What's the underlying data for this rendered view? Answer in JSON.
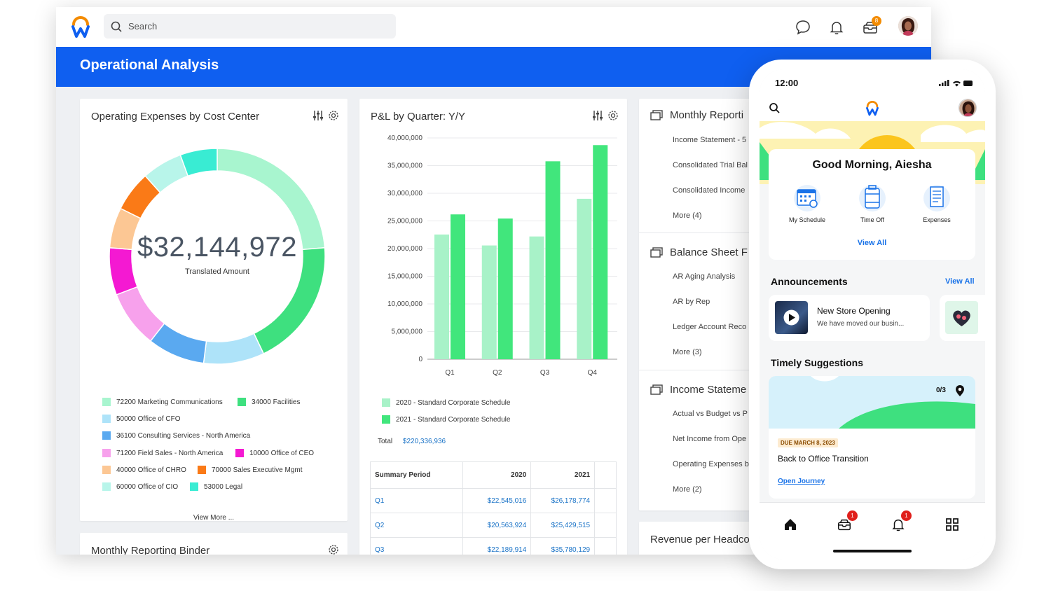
{
  "app": {
    "search_placeholder": "Search",
    "inbox_badge": "8",
    "page_title": "Operational Analysis",
    "brand_blue": "#0f5ff0"
  },
  "op_expenses": {
    "title": "Operating Expenses by Cost Center",
    "amount": "$32,144,972",
    "amount_label": "Translated Amount",
    "view_more": "View More ...",
    "legend": [
      {
        "label": "72200 Marketing Communications",
        "color": "#a8f5cf"
      },
      {
        "label": "34000 Facilities",
        "color": "#3ee07f"
      },
      {
        "label": "50000 Office of CFO",
        "color": "#aee3f9"
      },
      {
        "label": "36100 Consulting Services - North America",
        "color": "#5aa9f0"
      },
      {
        "label": "71200 Field Sales - North America",
        "color": "#f7a1ec"
      },
      {
        "label": "10000 Office of CEO",
        "color": "#f419d2"
      },
      {
        "label": "40000 Office of CHRO",
        "color": "#fcc794"
      },
      {
        "label": "70000 Sales Executive Mgmt",
        "color": "#fa7a17"
      },
      {
        "label": "60000 Office of CIO",
        "color": "#b8f5ea"
      },
      {
        "label": "53000 Legal",
        "color": "#39ecd3"
      }
    ]
  },
  "chart_data": {
    "type": "donut",
    "title": "Operating Expenses by Cost Center",
    "total": "$32,144,972",
    "slices": [
      {
        "label": "72200 Marketing Communications",
        "value": 23.5
      },
      {
        "label": "34000 Facilities",
        "value": 19.0
      },
      {
        "label": "50000 Office of CFO",
        "value": 9.0
      },
      {
        "label": "36100 Consulting Services - North America",
        "value": 8.5
      },
      {
        "label": "71200 Field Sales - North America",
        "value": 8.5
      },
      {
        "label": "10000 Office of CEO",
        "value": 7.0
      },
      {
        "label": "40000 Office of CHRO",
        "value": 6.0
      },
      {
        "label": "70000 Sales Executive Mgmt",
        "value": 6.0
      },
      {
        "label": "60000 Office of CIO",
        "value": 6.0
      },
      {
        "label": "53000 Legal",
        "value": 5.5
      }
    ],
    "colors": [
      "#a8f5cf",
      "#3ee07f",
      "#aee3f9",
      "#5aa9f0",
      "#f7a1ec",
      "#f419d2",
      "#fcc794",
      "#fa7a17",
      "#b8f5ea",
      "#39ecd3"
    ]
  },
  "pl": {
    "title": "P&L by Quarter: Y/Y",
    "y_ticks": [
      "40,000,000",
      "35,000,000",
      "30,000,000",
      "25,000,000",
      "20,000,000",
      "15,000,000",
      "10,000,000",
      "5,000,000",
      "0"
    ],
    "ylim": [
      0,
      40000000
    ],
    "categories": [
      "Q1",
      "Q2",
      "Q3",
      "Q4"
    ],
    "series": [
      {
        "name": "2020 - Standard Corporate Schedule",
        "color": "#a8f2c8",
        "values": [
          22545016,
          20563924,
          22189914,
          29000000
        ]
      },
      {
        "name": "2021 - Standard Corporate Schedule",
        "color": "#41e67c",
        "values": [
          26178774,
          25429515,
          35780129,
          38700000
        ]
      }
    ],
    "total_label": "Total",
    "total_value": "$220,336,936",
    "table": {
      "headers": [
        "Summary Period",
        "2020",
        "2021"
      ],
      "rows": [
        [
          "Q1",
          "$22,545,016",
          "$26,178,774"
        ],
        [
          "Q2",
          "$20,563,924",
          "$25,429,515"
        ],
        [
          "Q3",
          "$22,189,914",
          "$35,780,129"
        ]
      ]
    }
  },
  "reports": {
    "monthly_title": "Monthly Reporti",
    "monthly_items": [
      "Income Statement - 5",
      "Consolidated Trial Bal",
      "Consolidated Income",
      "More (4)"
    ],
    "balance_title": "Balance Sheet F",
    "balance_items": [
      "AR Aging Analysis",
      "AR by Rep",
      "Ledger Account Reco",
      "More (3)"
    ],
    "income_title": "Income Stateme",
    "income_items": [
      "Actual vs Budget vs P",
      "Net Income from Ope",
      "Operating Expenses b",
      "More (2)"
    ]
  },
  "bottom_cards": {
    "binder_title": "Monthly Reporting Binder",
    "revenue_title": "Revenue per Headco"
  },
  "phone": {
    "time": "12:00",
    "greeting": "Good Morning, Aiesha",
    "quick_actions": [
      "My Schedule",
      "Time Off",
      "Expenses"
    ],
    "view_all": "View All",
    "announcements_title": "Announcements",
    "announcements_view_all": "View All",
    "announcement_title": "New Store Opening",
    "announcement_sub": "We have moved our busin...",
    "suggestions_title": "Timely Suggestions",
    "suggestion_count": "0/3",
    "suggestion_due": "DUE MARCH 8, 2023",
    "suggestion_title": "Back to Office Transition",
    "suggestion_link": "Open Journey",
    "inbox_badge": "1",
    "notif_badge": "1"
  }
}
